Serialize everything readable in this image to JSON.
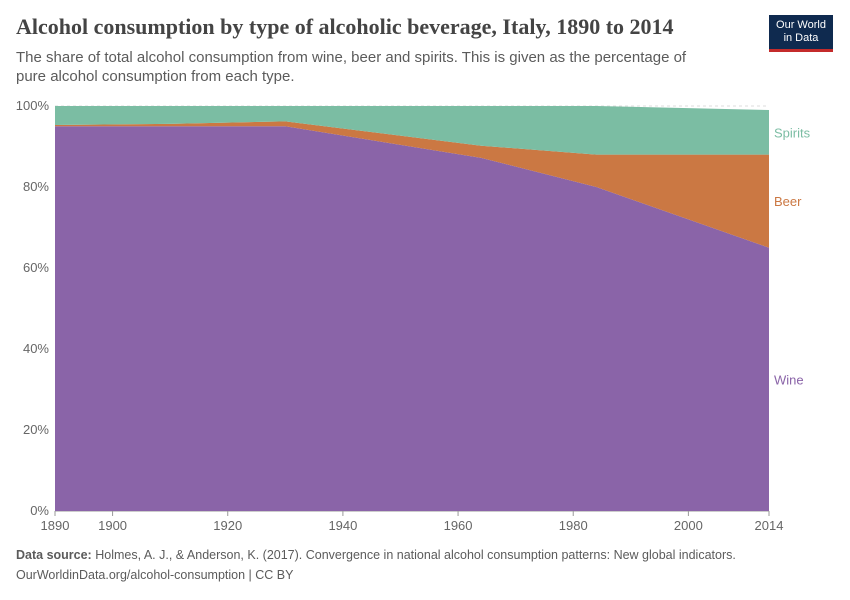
{
  "header": {
    "title": "Alcohol consumption by type of alcoholic beverage, Italy, 1890 to 2014",
    "subtitle": "The share of total alcohol consumption from wine, beer and spirits. This is given as the percentage of pure alcohol consumption from each type.",
    "logo_line1": "Our World",
    "logo_line2": "in Data"
  },
  "chart_data": {
    "type": "area",
    "stacked": true,
    "x": [
      1890,
      1910,
      1930,
      1964,
      1984,
      2014
    ],
    "series": [
      {
        "name": "Wine",
        "color": "#8a64a8",
        "values": [
          95,
          95,
          95,
          87.2,
          80,
          65
        ]
      },
      {
        "name": "Beer",
        "color": "#cb7843",
        "values": [
          0.3,
          0.6,
          1.2,
          3,
          8,
          23
        ]
      },
      {
        "name": "Spirits",
        "color": "#7bbda3",
        "values": [
          4.7,
          4.4,
          3.8,
          9.8,
          12,
          11
        ]
      }
    ],
    "xlim": [
      1890,
      2014
    ],
    "ylim": [
      0,
      100
    ],
    "xticks": [
      "1890",
      "1900",
      "1920",
      "1940",
      "1960",
      "1980",
      "2000",
      "2014"
    ],
    "yticks": [
      "0%",
      "20%",
      "40%",
      "60%",
      "80%",
      "100%"
    ],
    "legend": "right-inline"
  },
  "footer": {
    "source_label": "Data source:",
    "source_text": "Holmes, A. J., & Anderson, K. (2017). Convergence in national alcohol consumption patterns: New global indicators.",
    "url": "OurWorldinData.org/alcohol-consumption | CC BY"
  }
}
